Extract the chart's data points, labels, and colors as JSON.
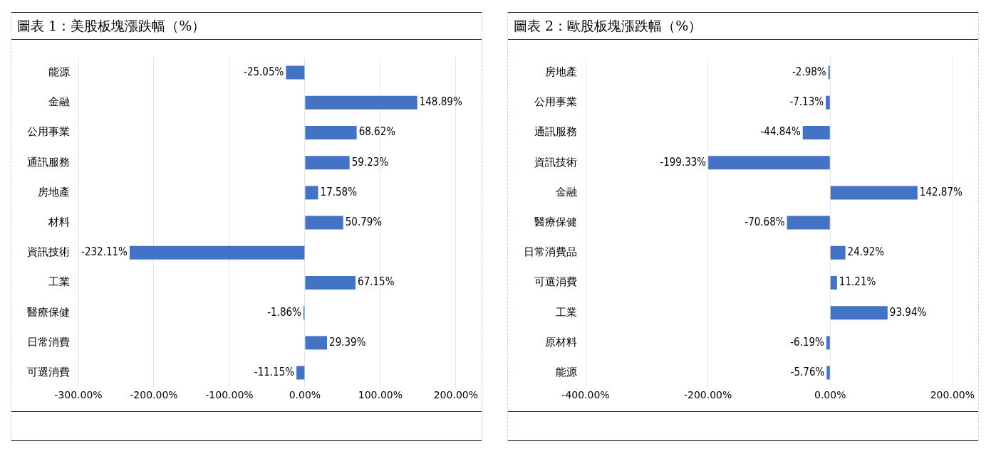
{
  "chart_data": [
    {
      "type": "bar",
      "orientation": "horizontal",
      "title": "圖表 1：美股板塊漲跌幅（%）",
      "categories": [
        "能源",
        "金融",
        "公用事業",
        "通訊服務",
        "房地產",
        "材料",
        "資訊技術",
        "工業",
        "醫療保健",
        "日常消費",
        "可選消費"
      ],
      "values": [
        -25.05,
        148.89,
        68.62,
        59.23,
        17.58,
        50.79,
        -232.11,
        67.15,
        -1.86,
        29.39,
        -11.15
      ],
      "value_labels": [
        "-25.05%",
        "148.89%",
        "68.62%",
        "59.23%",
        "17.58%",
        "50.79%",
        "-232.11%",
        "67.15%",
        "-1.86%",
        "29.39%",
        "-11.15%"
      ],
      "color": "#4472c4",
      "xlim": [
        -300,
        200
      ],
      "xticks": [
        {
          "value": -300,
          "label": "-300.00%"
        },
        {
          "value": -200,
          "label": "-200.00%"
        },
        {
          "value": -100,
          "label": "-100.00%"
        },
        {
          "value": 0,
          "label": "0.00%"
        },
        {
          "value": 100,
          "label": "100.00%"
        },
        {
          "value": 200,
          "label": "200.00%"
        }
      ],
      "grid": "x",
      "legend": false
    },
    {
      "type": "bar",
      "orientation": "horizontal",
      "title": "圖表 2：歐股板塊漲跌幅（%）",
      "categories": [
        "房地產",
        "公用事業",
        "通訊服務",
        "資訊技術",
        "金融",
        "醫療保健",
        "日常消費品",
        "可選消費",
        "工業",
        "原材料",
        "能源"
      ],
      "values": [
        -2.98,
        -7.13,
        -44.84,
        -199.33,
        142.87,
        -70.68,
        24.92,
        11.21,
        93.94,
        -6.19,
        -5.76
      ],
      "value_labels": [
        "-2.98%",
        "-7.13%",
        "-44.84%",
        "-199.33%",
        "142.87%",
        "-70.68%",
        "24.92%",
        "11.21%",
        "93.94%",
        "-6.19%",
        "-5.76%"
      ],
      "color": "#4472c4",
      "xlim": [
        -400,
        200
      ],
      "xticks": [
        {
          "value": -400,
          "label": "-400.00%"
        },
        {
          "value": -200,
          "label": "-200.00%"
        },
        {
          "value": 0,
          "label": "0.00%"
        },
        {
          "value": 200,
          "label": "200.00%"
        }
      ],
      "grid": "x",
      "legend": false
    }
  ]
}
